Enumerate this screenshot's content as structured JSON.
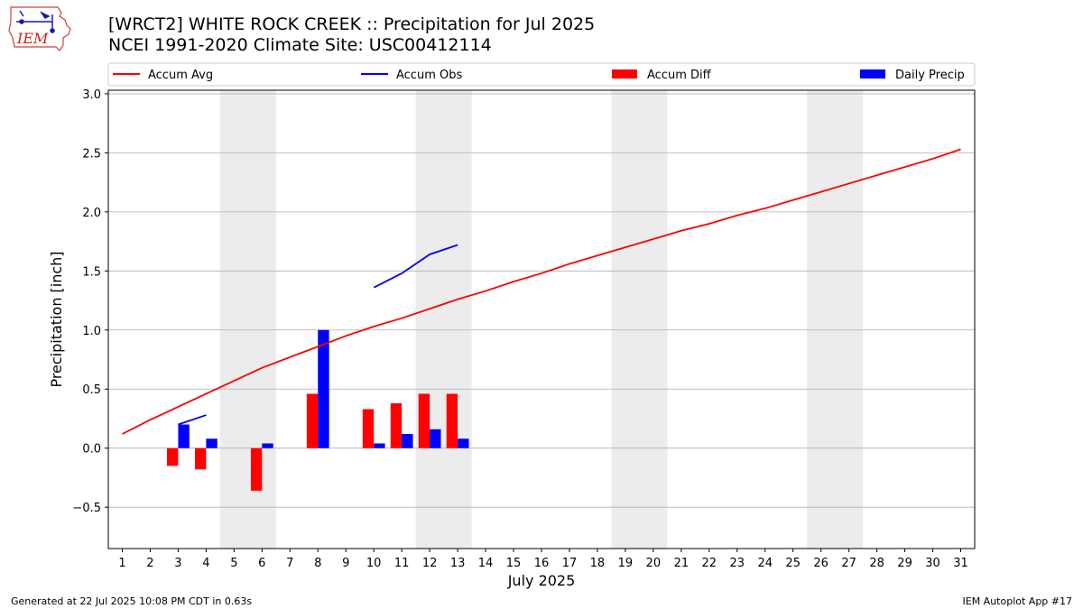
{
  "header": {
    "title_line1": "[WRCT2] WHITE ROCK CREEK :: Precipitation for Jul 2025",
    "title_line2": "NCEI 1991-2020 Climate Site: USC00412114",
    "logo_text": "IEM"
  },
  "footer": {
    "left": "Generated at 22 Jul 2025 10:08 PM CDT in 0.63s",
    "right": "IEM Autoplot App #17"
  },
  "colors": {
    "accum_avg": "#ff0000",
    "accum_obs": "#0000ff",
    "accum_diff": "#ff0000",
    "daily_precip": "#0000ff",
    "weekend_band": "#ececec",
    "grid": "#b0b0b0"
  },
  "chart_data": {
    "type": "bar",
    "xlabel": "July 2025",
    "ylabel": "Precipitation [inch]",
    "xlim": [
      0.5,
      31.5
    ],
    "ylim": [
      -0.85,
      3.03
    ],
    "yticks": [
      -0.5,
      0.0,
      0.5,
      1.0,
      1.5,
      2.0,
      2.5,
      3.0
    ],
    "ytick_labels": [
      "−0.5",
      "0.0",
      "0.5",
      "1.0",
      "1.5",
      "2.0",
      "2.5",
      "3.0"
    ],
    "x": [
      1,
      2,
      3,
      4,
      5,
      6,
      7,
      8,
      9,
      10,
      11,
      12,
      13,
      14,
      15,
      16,
      17,
      18,
      19,
      20,
      21,
      22,
      23,
      24,
      25,
      26,
      27,
      28,
      29,
      30,
      31
    ],
    "grid": "horizontal",
    "legend_placement": "top",
    "legend": [
      "Accum Avg",
      "Accum Obs",
      "Accum Diff",
      "Daily Precip"
    ],
    "weekend_days": [
      5,
      6,
      12,
      13,
      19,
      20,
      26,
      27
    ],
    "series": [
      {
        "name": "Accum Avg",
        "type": "line",
        "x": [
          1,
          2,
          3,
          4,
          5,
          6,
          7,
          8,
          9,
          10,
          11,
          12,
          13,
          14,
          15,
          16,
          17,
          18,
          19,
          20,
          21,
          22,
          23,
          24,
          25,
          26,
          27,
          28,
          29,
          30,
          31
        ],
        "values": [
          0.12,
          0.24,
          0.35,
          0.46,
          0.57,
          0.68,
          0.77,
          0.86,
          0.95,
          1.03,
          1.1,
          1.18,
          1.26,
          1.33,
          1.41,
          1.48,
          1.56,
          1.63,
          1.7,
          1.77,
          1.84,
          1.9,
          1.97,
          2.03,
          2.1,
          2.17,
          2.24,
          2.31,
          2.38,
          2.45,
          2.53
        ]
      },
      {
        "name": "Accum Obs",
        "type": "line",
        "segments": [
          {
            "x": [
              3,
              4
            ],
            "values": [
              0.2,
              0.28
            ]
          },
          {
            "x": [
              10,
              11,
              12,
              13
            ],
            "values": [
              1.36,
              1.48,
              1.64,
              1.72
            ]
          }
        ]
      },
      {
        "name": "Accum Diff",
        "type": "bar",
        "x": [
          3,
          4,
          6,
          8,
          10,
          11,
          12,
          13
        ],
        "values": [
          -0.15,
          -0.18,
          -0.36,
          0.46,
          0.33,
          0.38,
          0.46,
          0.46
        ]
      },
      {
        "name": "Daily Precip",
        "type": "bar",
        "x": [
          3,
          4,
          6,
          8,
          10,
          11,
          12,
          13
        ],
        "values": [
          0.2,
          0.08,
          0.04,
          1.0,
          0.04,
          0.12,
          0.16,
          0.08
        ]
      }
    ]
  }
}
